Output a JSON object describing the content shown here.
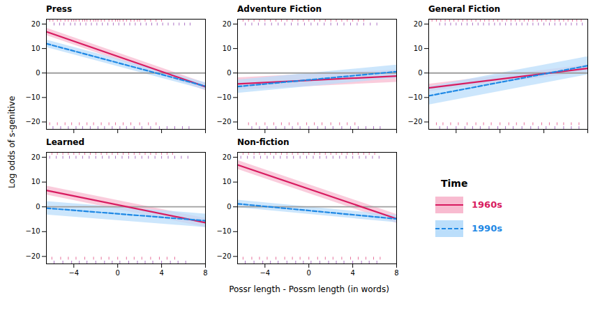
{
  "chart_data": {
    "type": "line",
    "xlabel": "Possr length - Possm length (in words)",
    "ylabel": "Log odds of s-genitive",
    "xlim": [
      -6.5,
      8
    ],
    "ylim": [
      -23,
      22
    ],
    "xticks": [
      -4,
      0,
      4,
      8
    ],
    "yticks": [
      -20,
      -10,
      0,
      10,
      20
    ],
    "grid": false,
    "legend": "lower right",
    "legend_title": "Time",
    "reference_line": {
      "value": 0,
      "color": "#9e9e9e"
    },
    "rug_s_color": "#d81b60",
    "rug_of_color": "#7b1fa2",
    "panels": [
      {
        "title": "Press",
        "tick_labels": "y",
        "x": [
          -6.5,
          8
        ],
        "series": [
          {
            "name": "1960s",
            "color": "#d81b60",
            "ribbon_color": "#f8bbd0",
            "line_style": "solid",
            "values": [
              16.875,
              -5.6
            ],
            "lower": [
              15.375,
              -7.1
            ],
            "upper": [
              18.375,
              -4.1
            ]
          },
          {
            "name": "1990s",
            "color": "#1e88e5",
            "ribbon_color": "#bbdefb",
            "line_style": "dashed",
            "values": [
              12.0,
              -5.4
            ],
            "lower": [
              10.5,
              -6.9
            ],
            "upper": [
              13.5,
              -3.9
            ]
          }
        ],
        "rug_top_s": [
          -6.5,
          -6.2,
          -5.9,
          -5.5,
          -5.2,
          -4.8,
          -4.5,
          -4.2,
          -4.0,
          -3.8,
          -3.5,
          -3.2,
          -3.0,
          -2.8,
          -2.5,
          -2.2,
          -2.0,
          -1.8,
          -1.5,
          -1.2,
          -0.8,
          -0.5,
          -0.2,
          0.0,
          0.2,
          0.5,
          0.8,
          1.2,
          1.5,
          1.8,
          2.0,
          2.5,
          3.0,
          3.5,
          4.0
        ],
        "rug_top_of": [
          -5.8,
          -5.3,
          -4.9,
          -4.3,
          -3.9,
          -3.4,
          -2.9,
          -2.4,
          -1.9,
          -1.4,
          -0.9,
          -0.4,
          0.1,
          0.6,
          1.1,
          1.6,
          2.1,
          2.6,
          3.1,
          3.6,
          4.1,
          4.6,
          5.1,
          5.6,
          6.1,
          6.6
        ],
        "rug_bot_s": [
          -6.2,
          -5.5,
          -4.8,
          -4.2,
          -3.5,
          -2.8,
          -2.2,
          -1.5,
          -0.8,
          -0.2,
          0.5,
          1.2,
          2.0,
          2.8,
          3.5
        ],
        "rug_bot_of": [
          -5.9,
          -5.2,
          -4.5,
          -3.8,
          -3.2,
          -2.5,
          -1.8,
          -1.2,
          -0.5,
          0.2,
          0.8,
          1.5,
          2.2,
          3.0,
          3.8,
          4.5,
          5.2,
          5.9,
          6.5
        ]
      },
      {
        "title": "Adventure Fiction",
        "tick_labels": "y",
        "x": [
          -6.5,
          8
        ],
        "series": [
          {
            "name": "1960s",
            "color": "#d81b60",
            "ribbon_color": "#f8bbd0",
            "line_style": "solid",
            "values": [
              -4.43,
              -1.24
            ],
            "lower": [
              -6.93,
              -3.74
            ],
            "upper": [
              -1.93,
              1.26
            ]
          },
          {
            "name": "1990s",
            "color": "#1e88e5",
            "ribbon_color": "#bbdefb",
            "line_style": "dashed",
            "values": [
              -5.53,
              0.56
            ],
            "lower": [
              -8.23,
              -2.14
            ],
            "upper": [
              -2.83,
              3.26
            ]
          }
        ],
        "rug_top_s": [
          -6.0,
          -5.5,
          -5.0,
          -4.5,
          -4.0,
          -3.5,
          -3.0,
          -2.5,
          -2.0,
          -1.5,
          -1.0,
          -0.5,
          0.0,
          0.5,
          1.0,
          1.5,
          2.0,
          2.5,
          3.0,
          3.5,
          4.0,
          4.5,
          5.0
        ],
        "rug_top_of": [
          -5.8,
          -5.2,
          -4.6,
          -4.0,
          -3.4,
          -2.8,
          -2.2,
          -1.6,
          -1.0,
          -0.4,
          0.2,
          0.8,
          1.4,
          2.0,
          2.6,
          3.2,
          3.8,
          4.4,
          5.0,
          5.6,
          6.2
        ],
        "rug_bot_s": [
          -5.5,
          -4.8,
          -4.0,
          -3.2,
          -2.5,
          -1.8,
          -1.0,
          -0.2,
          0.5,
          1.2,
          2.0,
          2.8,
          3.5,
          4.2
        ],
        "rug_bot_of": [
          -5.2,
          -4.5,
          -3.8,
          -3.0,
          -2.2,
          -1.5,
          -0.8,
          0.0,
          0.8,
          1.5,
          2.2,
          3.0,
          3.8,
          4.5,
          5.2,
          5.9,
          6.5
        ]
      },
      {
        "title": "General Fiction",
        "tick_labels": "y",
        "x": [
          -6.5,
          8
        ],
        "series": [
          {
            "name": "1960s",
            "color": "#d81b60",
            "ribbon_color": "#f8bbd0",
            "line_style": "solid",
            "values": [
              -6.075,
              1.9
            ],
            "lower": [
              -7.575,
              0.4
            ],
            "upper": [
              -4.575,
              3.4
            ]
          },
          {
            "name": "1990s",
            "color": "#1e88e5",
            "ribbon_color": "#bbdefb",
            "line_style": "dashed",
            "values": [
              -9.325,
              3.0
            ],
            "lower": [
              -13.025,
              -0.7
            ],
            "upper": [
              -5.625,
              6.7
            ]
          }
        ],
        "rug_top_s": [
          -6.2,
          -5.8,
          -5.4,
          -5.0,
          -4.6,
          -4.2,
          -3.8,
          -3.4,
          -3.0,
          -2.6,
          -2.2,
          -1.8,
          -1.4,
          -1.0,
          -0.6,
          -0.2,
          0.2,
          0.6,
          1.0,
          1.4,
          1.8,
          2.2,
          2.6,
          3.0,
          3.4,
          3.8,
          4.2,
          4.6,
          5.0,
          5.4,
          5.8,
          6.2,
          6.6,
          7.0,
          7.4
        ],
        "rug_top_of": [
          -5.5,
          -5.0,
          -4.5,
          -4.0,
          -3.5,
          -3.0,
          -2.5,
          -2.0,
          -1.5,
          -1.0,
          -0.5,
          0.0,
          0.5,
          1.0,
          1.5,
          2.0,
          2.5,
          3.0,
          3.5,
          4.0,
          4.5,
          5.0,
          5.5,
          6.0,
          6.5,
          7.0,
          7.5
        ],
        "rug_bot_s": [
          -5.8,
          -5.2,
          -4.5,
          -3.8,
          -3.0,
          -2.2,
          -1.5,
          -0.8,
          0.0,
          0.8,
          1.5,
          2.2,
          3.0,
          3.8,
          4.5,
          5.2,
          5.8,
          6.5,
          7.2
        ],
        "rug_bot_of": [
          -5.5,
          -4.8,
          -4.0,
          -3.2,
          -2.5,
          -1.8,
          -1.0,
          -0.2,
          0.5,
          1.2,
          2.0,
          2.8,
          3.5,
          4.2,
          5.0,
          5.8,
          6.5,
          7.2
        ]
      },
      {
        "title": "Learned",
        "x": [
          -6.5,
          8
        ],
        "series": [
          {
            "name": "1960s",
            "color": "#d81b60",
            "ribbon_color": "#f8bbd0",
            "line_style": "solid",
            "values": [
              6.65,
              -6.4
            ],
            "lower": [
              4.85,
              -8.2
            ],
            "upper": [
              8.45,
              -4.6
            ]
          },
          {
            "name": "1990s",
            "color": "#1e88e5",
            "ribbon_color": "#bbdefb",
            "line_style": "dashed",
            "values": [
              -0.525,
              -5.6
            ],
            "lower": [
              -3.225,
              -8.3
            ],
            "upper": [
              2.175,
              -2.9
            ]
          }
        ],
        "rug_top_s": [
          -6.5,
          -6.0,
          -5.5,
          -5.0,
          -4.5,
          -4.0,
          -3.5,
          -3.0,
          -2.5,
          -2.0,
          -1.5,
          -1.0,
          -0.5,
          0.0,
          0.5,
          1.0,
          1.5,
          2.0,
          2.5,
          3.0,
          3.5,
          4.0,
          4.5,
          5.0
        ],
        "rug_top_of": [
          -6.2,
          -5.6,
          -5.0,
          -4.4,
          -3.8,
          -3.2,
          -2.6,
          -2.0,
          -1.4,
          -0.8,
          -0.2,
          0.4,
          1.0,
          1.6,
          2.2,
          2.8,
          3.4,
          4.0,
          4.6,
          5.2,
          5.8,
          6.4
        ],
        "rug_bot_s": [
          -6.0,
          -5.2,
          -4.5,
          -3.8,
          -3.0,
          -2.2,
          -1.5,
          -0.8,
          0.0,
          0.8,
          1.5,
          2.2,
          3.0,
          3.8,
          4.5,
          5.2
        ],
        "rug_bot_of": [
          -5.8,
          -5.0,
          -4.2,
          -3.5,
          -2.8,
          -2.0,
          -1.2,
          -0.5,
          0.2,
          1.0,
          1.8,
          2.5,
          3.2,
          4.0,
          4.8,
          5.5,
          6.2
        ]
      },
      {
        "title": "Non-fiction",
        "x": [
          -6.5,
          8
        ],
        "series": [
          {
            "name": "1960s",
            "color": "#d81b60",
            "ribbon_color": "#f8bbd0",
            "line_style": "solid",
            "values": [
              16.95,
              -4.8
            ],
            "lower": [
              15.15,
              -6.6
            ],
            "upper": [
              18.75,
              -3.0
            ]
          },
          {
            "name": "1990s",
            "color": "#1e88e5",
            "ribbon_color": "#bbdefb",
            "line_style": "dashed",
            "values": [
              1.23,
              -4.86
            ],
            "lower": [
              -0.27,
              -6.36
            ],
            "upper": [
              2.73,
              -3.36
            ]
          }
        ],
        "rug_top_s": [
          -6.5,
          -6.0,
          -5.5,
          -5.0,
          -4.5,
          -4.0,
          -3.5,
          -3.0,
          -2.5,
          -2.0,
          -1.5,
          -1.0,
          -0.5,
          0.0,
          0.5,
          1.0,
          1.5,
          2.0,
          2.5,
          3.0,
          3.5,
          4.0,
          4.5,
          5.0,
          5.5,
          6.0
        ],
        "rug_top_of": [
          -6.2,
          -5.6,
          -5.0,
          -4.4,
          -3.8,
          -3.2,
          -2.6,
          -2.0,
          -1.4,
          -0.8,
          -0.2,
          0.4,
          1.0,
          1.6,
          2.2,
          2.8,
          3.4,
          4.0,
          4.6,
          5.2,
          5.8,
          6.4
        ],
        "rug_bot_s": [
          -6.0,
          -5.2,
          -4.5,
          -3.8,
          -3.0,
          -2.2,
          -1.5,
          -0.8,
          0.0,
          0.8,
          1.5,
          2.2,
          3.0,
          3.8,
          4.5,
          5.2,
          5.9,
          6.5
        ],
        "rug_bot_of": [
          -5.8,
          -5.0,
          -4.2,
          -3.5,
          -2.8,
          -2.0,
          -1.2,
          -0.5,
          0.2,
          1.0,
          1.8,
          2.5,
          3.2,
          4.0,
          4.8,
          5.5,
          6.2
        ]
      }
    ]
  }
}
